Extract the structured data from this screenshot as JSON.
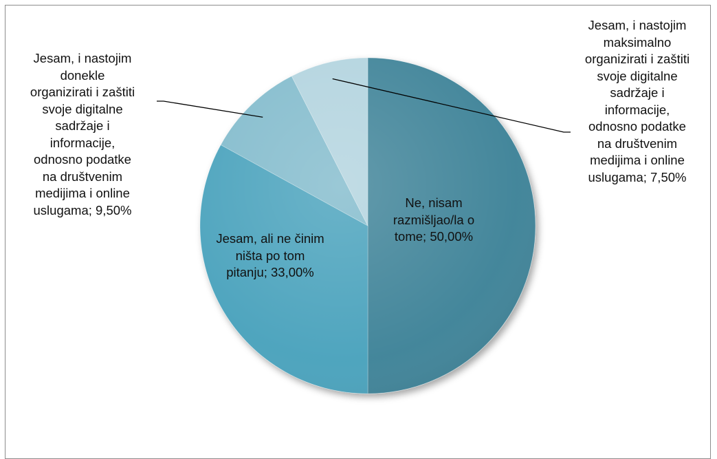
{
  "chart_data": {
    "type": "pie",
    "title": "",
    "slices": [
      {
        "label": "Ne, nisam razmišljao/la o tome",
        "value": 50.0,
        "value_label": "50,00%",
        "color": "#3f8499"
      },
      {
        "label": "Jesam, ali ne činim ništa po tom pitanju",
        "value": 33.0,
        "value_label": "33,00%",
        "color": "#4ba3bd"
      },
      {
        "label": "Jesam, i nastojim donekle organizirati i zaštiti svoje digitalne sadržaje i informacije, odnosno podatke na društvenim medijima i online uslugama",
        "value": 9.5,
        "value_label": "9,50%",
        "color": "#84bccd"
      },
      {
        "label": "Jesam, i nastojim maksimalno organizirati i zaštiti svoje digitalne sadržaje i informacije, odnosno podatke na društvenim medijima i online uslugama",
        "value": 7.5,
        "value_label": "7,50%",
        "color": "#b3d4df"
      }
    ],
    "data_labels": [
      "Ne, nisam\nrazmišljao/la o\ntome; 50,00%",
      "Jesam, ali ne činim\nništa po tom\npitanju; 33,00%",
      "Jesam, i nastojim\ndonekle\norganizirati i zaštiti\nsvoje digitalne\nsadržaje i\ninformacije,\nodnosno podatke\nna društvenim\nmedijima i online\nuslugama; 9,50%",
      "Jesam, i nastojim\nmaksimalno\norganizirati i zaštiti\nsvoje digitalne\nsadržaje i\ninformacije,\nodnosno podatke\nna društvenim\nmedijima i online\nuslugama; 7,50%"
    ],
    "legend": "none",
    "start_angle_deg": 0,
    "direction": "clockwise"
  }
}
